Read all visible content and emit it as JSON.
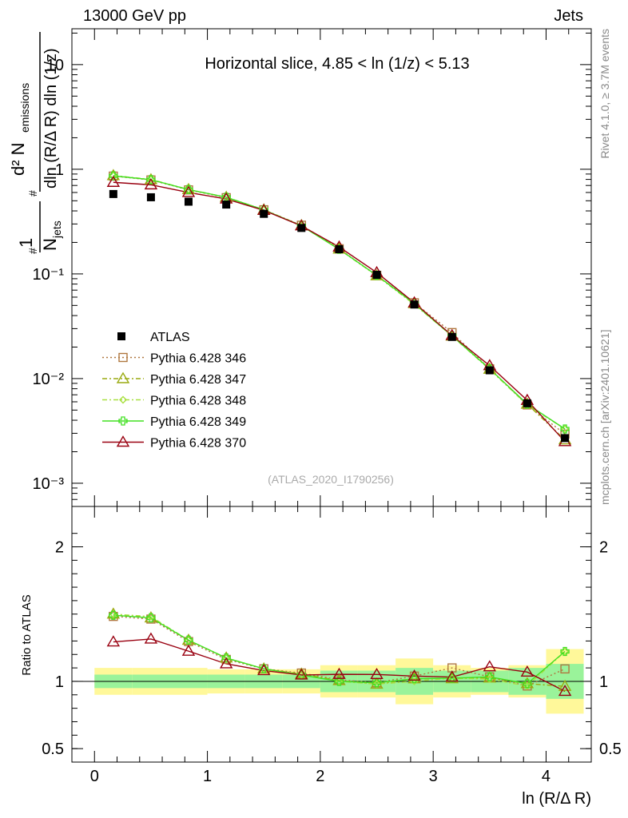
{
  "header": {
    "left": "13000 GeV pp",
    "right": "Jets"
  },
  "side_labels": {
    "rivet": "Rivet 4.1.0, ≥ 3.7M events",
    "mcplots": "mcplots.cern.ch [arXiv:2401.10621]"
  },
  "chart_data": {
    "type": "line",
    "title": "Horizontal slice, 4.85 < ln (1/z) < 5.13",
    "watermark": "(ATLAS_2020_I1790256)",
    "xlabel": "ln (R/Δ R)",
    "ylabel": "#frac{1}{N_{jets}} #frac{d² N_{emissions}}{dln (R/Δ R) dln (1/z)}",
    "ratio_ylabel": "Ratio to ATLAS",
    "xlim": [
      -0.2,
      4.4
    ],
    "ylim": [
      0.0006,
      22
    ],
    "yscale": "log",
    "ratio_ylim": [
      0.4,
      2.3
    ],
    "x_ticks": [
      "0",
      "1",
      "2",
      "3",
      "4"
    ],
    "y_ticks": [
      "10⁻³",
      "10⁻²",
      "10⁻¹",
      "1",
      "10"
    ],
    "ratio_ticks": [
      "0.5",
      "1",
      "2"
    ],
    "x": [
      0.167,
      0.5,
      0.833,
      1.167,
      1.5,
      1.833,
      2.167,
      2.5,
      2.833,
      3.167,
      3.5,
      3.833,
      4.167
    ],
    "bin_edges": [
      0,
      0.333,
      0.667,
      1.0,
      1.333,
      1.667,
      2.0,
      2.333,
      2.667,
      3.0,
      3.333,
      3.667,
      4.0,
      4.333
    ],
    "data": {
      "name": "ATLAS",
      "values": [
        0.58,
        0.54,
        0.49,
        0.46,
        0.375,
        0.275,
        0.172,
        0.098,
        0.051,
        0.025,
        0.012,
        0.0058,
        0.0027
      ]
    },
    "band_stat": [
      0.05,
      0.05,
      0.05,
      0.05,
      0.05,
      0.05,
      0.08,
      0.08,
      0.1,
      0.08,
      0.08,
      0.1,
      0.13
    ],
    "band_total": [
      0.1,
      0.1,
      0.1,
      0.09,
      0.09,
      0.09,
      0.12,
      0.12,
      0.17,
      0.12,
      0.1,
      0.12,
      0.24
    ],
    "series": [
      {
        "name": "Pythia 6.428 346",
        "color": "#b07840",
        "marker": "square",
        "dash": "2,3",
        "values": [
          0.86,
          0.79,
          0.635,
          0.535,
          0.41,
          0.292,
          0.174,
          0.097,
          0.053,
          0.0275,
          0.0124,
          0.0056,
          0.00295
        ]
      },
      {
        "name": "Pythia 6.428 347",
        "color": "#9aaa10",
        "marker": "triangle",
        "dash": "6,3,2,3",
        "values": [
          0.87,
          0.795,
          0.64,
          0.54,
          0.41,
          0.29,
          0.173,
          0.096,
          0.052,
          0.0255,
          0.0123,
          0.0057,
          0.0026
        ]
      },
      {
        "name": "Pythia 6.428 348",
        "color": "#a8e040",
        "marker": "diamond",
        "dash": "6,3,2,3",
        "values": [
          0.87,
          0.8,
          0.64,
          0.54,
          0.41,
          0.288,
          0.172,
          0.096,
          0.051,
          0.0256,
          0.0122,
          0.0056,
          0.0033
        ]
      },
      {
        "name": "Pythia 6.428 349",
        "color": "#40e020",
        "marker": "cross",
        "dash": "",
        "values": [
          0.865,
          0.795,
          0.64,
          0.54,
          0.41,
          0.288,
          0.172,
          0.097,
          0.052,
          0.0256,
          0.0124,
          0.0057,
          0.0033
        ]
      },
      {
        "name": "Pythia 6.428 370",
        "color": "#990010",
        "marker": "triangle",
        "dash": "",
        "values": [
          0.75,
          0.71,
          0.6,
          0.52,
          0.405,
          0.288,
          0.181,
          0.103,
          0.053,
          0.0258,
          0.0133,
          0.0062,
          0.0025
        ]
      }
    ],
    "legend": [
      "ATLAS",
      "Pythia 6.428 346",
      "Pythia 6.428 347",
      "Pythia 6.428 348",
      "Pythia 6.428 349",
      "Pythia 6.428 370"
    ],
    "legend_position": "middle-left"
  }
}
